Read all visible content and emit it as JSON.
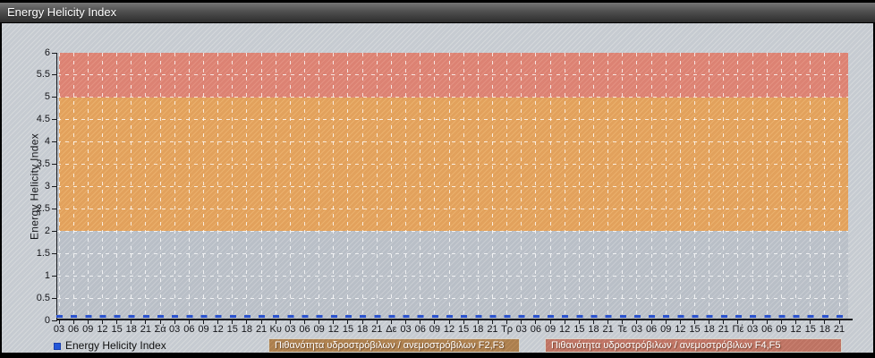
{
  "window": {
    "title": "Energy Helicity Index"
  },
  "colors": {
    "titlebar_top": "#757575",
    "titlebar_bottom": "#2d2d2d",
    "canvas_base": "#c6cbd1",
    "canvas_stripe": "#d5d8db",
    "plot_base": "#b9bfc7",
    "grid": "#ffffff",
    "axis": "#181a1e",
    "series_blue": "#2a52cf",
    "legend_square": "#2457d8"
  },
  "chart_data": {
    "type": "line",
    "title": "Energy Helicity Index",
    "xlabel": "",
    "ylabel": "Energy Helicity Index",
    "ylim": [
      0,
      6
    ],
    "grid": true,
    "legend_position": "bottom",
    "y_ticks": [
      "0",
      "0.5",
      "1",
      "1.5",
      "2",
      "2.5",
      "3",
      "3.5",
      "4",
      "4.5",
      "5",
      "5.5",
      "6"
    ],
    "x_labels": [
      "03",
      "06",
      "09",
      "12",
      "15",
      "18",
      "21",
      "Σά",
      "03",
      "06",
      "09",
      "12",
      "15",
      "18",
      "21",
      "Κυ",
      "03",
      "06",
      "09",
      "12",
      "15",
      "18",
      "21",
      "Δε",
      "03",
      "06",
      "09",
      "12",
      "15",
      "18",
      "21",
      "Τρ",
      "03",
      "06",
      "09",
      "12",
      "15",
      "18",
      "21",
      "Τε",
      "03",
      "06",
      "09",
      "12",
      "15",
      "18",
      "21",
      "Πέ",
      "03",
      "06",
      "09",
      "12",
      "15",
      "18",
      "21"
    ],
    "series": [
      {
        "name": "Energy Helicity Index",
        "color": "#2a52cf",
        "style": "dashed",
        "values": [
          0,
          0,
          0,
          0,
          0,
          0,
          0,
          0,
          0,
          0,
          0,
          0,
          0,
          0,
          0,
          0,
          0,
          0,
          0,
          0,
          0,
          0,
          0,
          0,
          0,
          0,
          0,
          0,
          0,
          0,
          0,
          0,
          0,
          0,
          0,
          0,
          0,
          0,
          0,
          0,
          0,
          0,
          0,
          0,
          0,
          0,
          0,
          0,
          0,
          0,
          0,
          0,
          0,
          0,
          0
        ]
      }
    ],
    "bands": [
      {
        "from": 2,
        "to": 5,
        "color": "#e2a15c",
        "stripe": "#eab06c",
        "legend_bg": "#ab7f4e",
        "legend_stripe": "#b98a58",
        "label": "Πιθανότητα υδροστρόβιλων / ανεμοστρόβιλων F2,F3"
      },
      {
        "from": 5,
        "to": 6,
        "color": "#dc8273",
        "stripe": "#e39181",
        "legend_bg": "#bd7363",
        "legend_stripe": "#c98070",
        "label": "Πιθανότητα υδροστρόβιλων / ανεμοστρόβιλων F4,F5"
      }
    ]
  }
}
